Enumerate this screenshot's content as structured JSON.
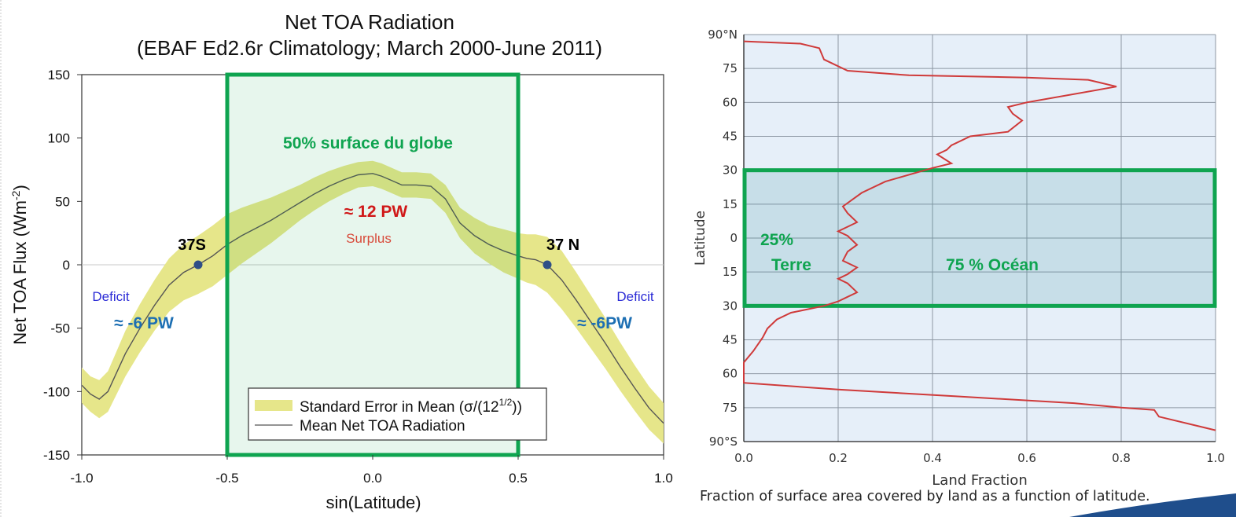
{
  "chart_data": [
    {
      "type": "line",
      "title": "Net TOA Radiation",
      "subtitle": "(EBAF Ed2.6r Climatology; March 2000-June 2011)",
      "xlabel": "sin(Latitude)",
      "ylabel": "Net TOA Flux (Wm",
      "ylabel_sup": "-2",
      "ylabel_close": ")",
      "xlim": [
        -1.0,
        1.0
      ],
      "ylim": [
        -150,
        150
      ],
      "xticks": [
        "-1.0",
        "-0.5",
        "0.0",
        "0.5",
        "1.0"
      ],
      "yticks": [
        "150",
        "100",
        "50",
        "0",
        "-50",
        "-100",
        "-150"
      ],
      "series": [
        {
          "name": "Mean Net TOA Radiation",
          "x": [
            -1.0,
            -0.97,
            -0.94,
            -0.91,
            -0.88,
            -0.85,
            -0.8,
            -0.75,
            -0.7,
            -0.65,
            -0.6,
            -0.55,
            -0.5,
            -0.45,
            -0.4,
            -0.35,
            -0.3,
            -0.25,
            -0.2,
            -0.15,
            -0.1,
            -0.05,
            0.0,
            0.03,
            0.06,
            0.1,
            0.15,
            0.2,
            0.25,
            0.3,
            0.35,
            0.4,
            0.45,
            0.5,
            0.53,
            0.56,
            0.6,
            0.65,
            0.7,
            0.75,
            0.8,
            0.85,
            0.9,
            0.95,
            1.0
          ],
          "y": [
            -95,
            -102,
            -106,
            -100,
            -85,
            -70,
            -50,
            -32,
            -16,
            -6,
            0,
            7,
            16,
            23,
            29,
            35,
            42,
            49,
            56,
            62,
            67,
            71,
            72,
            70,
            67,
            63,
            63,
            62,
            52,
            33,
            23,
            16,
            11,
            7,
            5,
            4,
            0,
            -12,
            -28,
            -45,
            -62,
            -80,
            -97,
            -113,
            -125
          ]
        }
      ],
      "band_name": "Standard Error in Mean (σ/(12",
      "band_sup": "1/2",
      "band_close": "))",
      "band_halfwidth": [
        14,
        14,
        15,
        16,
        17,
        18,
        19,
        20,
        21,
        22,
        23,
        24,
        24,
        22,
        20,
        18,
        16,
        14,
        13,
        12,
        11,
        10,
        10,
        10,
        10,
        10,
        10,
        10,
        11,
        12,
        14,
        15,
        17,
        18,
        19,
        20,
        22,
        23,
        22,
        21,
        20,
        19,
        18,
        17,
        16
      ],
      "markers": [
        {
          "label": "37S",
          "x": -0.6,
          "y": 0
        },
        {
          "label": "37 N",
          "x": 0.6,
          "y": 0
        }
      ],
      "highlight_box": {
        "x0": -0.5,
        "x1": 0.5,
        "label": "50% surface du globe",
        "color": "#0fa450"
      },
      "annotations": {
        "surplus_value": "≈ 12 PW",
        "surplus_label": "Surplus",
        "deficit_left_label": "Deficit",
        "deficit_left_value": "≈ -6 PW",
        "deficit_right_label": "Deficit",
        "deficit_right_value": "≈ -6PW"
      },
      "legend_position": "bottom-right",
      "grid": false,
      "colors": {
        "band": "#e6e68a",
        "line": "#555555",
        "marker": "#2f4f87",
        "deficit": "#2b2bd6",
        "pw": "#1d6fb3",
        "surplus_value": "#d01818",
        "surplus_label": "#d84a3a"
      }
    },
    {
      "type": "line",
      "xlabel": "Land Fraction",
      "ylabel": "Latitude",
      "xlim": [
        0.0,
        1.0
      ],
      "ylim": [
        -90,
        90
      ],
      "xticks": [
        "0.0",
        "0.2",
        "0.4",
        "0.6",
        "0.8",
        "1.0"
      ],
      "ytick_values": [
        90,
        75,
        60,
        45,
        30,
        15,
        0,
        -15,
        -30,
        -45,
        -60,
        -75,
        -90
      ],
      "yticks": [
        "90°N",
        "75",
        "60",
        "45",
        "30",
        "15",
        "0",
        "15",
        "30",
        "45",
        "60",
        "75",
        "90°S"
      ],
      "series": [
        {
          "x": [
            0.0,
            0.12,
            0.16,
            0.17,
            0.22,
            0.35,
            0.6,
            0.73,
            0.79,
            0.6,
            0.56,
            0.57,
            0.59,
            0.56,
            0.48,
            0.44,
            0.43,
            0.41,
            0.44,
            0.4,
            0.35,
            0.3,
            0.25,
            0.23,
            0.21,
            0.22,
            0.24,
            0.22,
            0.2,
            0.22,
            0.24,
            0.22,
            0.21,
            0.24,
            0.22,
            0.2,
            0.22,
            0.23,
            0.24,
            0.22,
            0.2,
            0.17,
            0.1,
            0.07,
            0.05,
            0.04,
            0.02,
            0.0,
            0.0,
            0.2,
            0.45,
            0.7,
            0.8,
            0.87,
            0.88,
            1.0
          ],
          "y": [
            87,
            86,
            84,
            79,
            74,
            72,
            71,
            70,
            67,
            60,
            58,
            55,
            52,
            47,
            45,
            41,
            39,
            37,
            33,
            31,
            28,
            25,
            20,
            17,
            14,
            11,
            7,
            5,
            3,
            1,
            -3,
            -6,
            -10,
            -13,
            -16,
            -18,
            -20,
            -22,
            -24,
            -26,
            -28,
            -30,
            -33,
            -36,
            -40,
            -44,
            -50,
            -55,
            -64,
            -67,
            -70,
            -73,
            -75,
            -76,
            -79,
            -85
          ]
        }
      ],
      "highlight_box": {
        "y0": -30,
        "y1": 30,
        "color": "#0fa450"
      },
      "annotations": {
        "land_pct": "25%",
        "land_label": "Terre",
        "ocean_label": "75 % Océan"
      },
      "grid": true,
      "caption": "Fraction of surface area covered by land as a function of latitude.",
      "colors": {
        "line": "#cf3a3a",
        "plot_bg": "#e6eff9",
        "grid": "#8d97a3",
        "box_fill": "#3f8f9a"
      }
    }
  ]
}
